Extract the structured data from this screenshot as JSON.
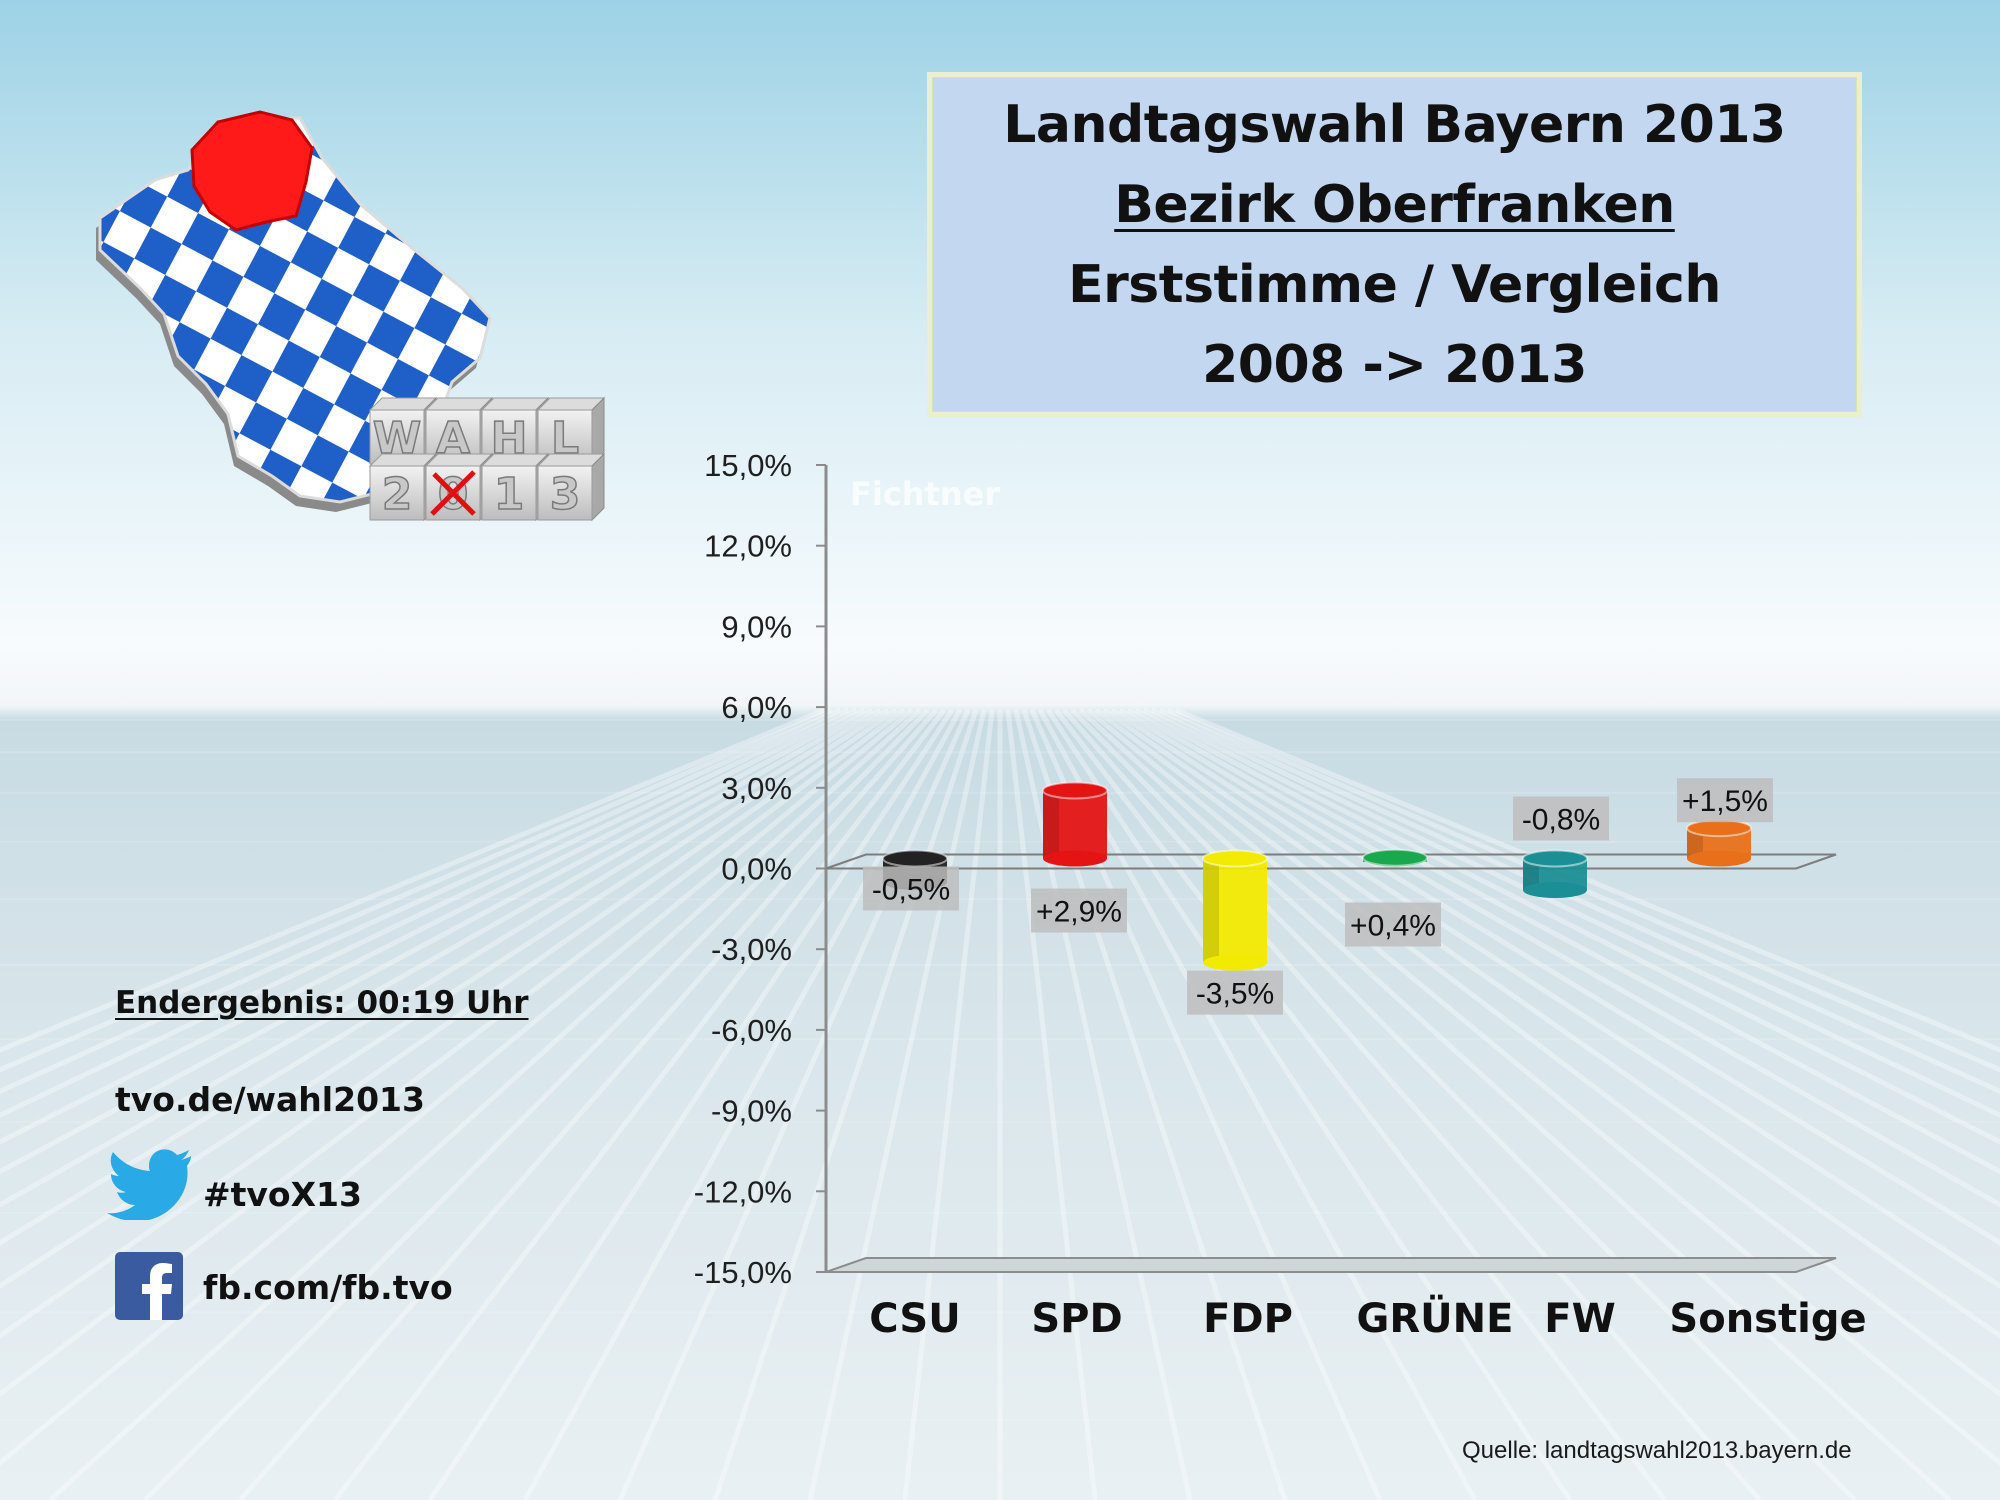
{
  "title_lines": [
    "Landtagswahl Bayern 2013",
    "Bezirk Oberfranken",
    "Erststimme / Vergleich",
    "2008 -> 2013"
  ],
  "logo": {
    "cube_letters": [
      "W",
      "A",
      "H",
      "L",
      "2",
      "0",
      "1",
      "3"
    ],
    "highlight_color": "#ff1a1a",
    "pattern_color": "#1f5fc8"
  },
  "info": {
    "result": "Endergebnis: 00:19 Uhr",
    "website": "tvo.de/wahl2013",
    "twitter": "#tvoX13",
    "facebook": "fb.com/fb.tvo"
  },
  "source": "Quelle: landtagswahl2013.bayern.de",
  "chart_data": {
    "type": "bar",
    "categories": [
      "CSU",
      "SPD",
      "FDP",
      "GRÜNE",
      "FW",
      "Sonstige"
    ],
    "values": [
      -0.5,
      2.9,
      -3.5,
      0.4,
      -0.8,
      1.5
    ],
    "labels": [
      "-0,5%",
      "+2,9%",
      "-3,5%",
      "+0,4%",
      "-0,8%",
      "+1,5%"
    ],
    "colors": [
      "#222222",
      "#e41414",
      "#f2ea00",
      "#1aa84e",
      "#1b8f95",
      "#e8701a"
    ],
    "ylim": [
      -15,
      15
    ],
    "yticks": [
      15,
      12,
      9,
      6,
      3,
      0,
      -3,
      -6,
      -9,
      -12,
      -15
    ],
    "ytick_labels": [
      "15,0%",
      "12,0%",
      "9,0%",
      "6,0%",
      "3,0%",
      "0,0%",
      "-3,0%",
      "-6,0%",
      "-9,0%",
      "-12,0%",
      "-15,0%"
    ],
    "watermark": "Fichtner",
    "grid": false,
    "legend": "none"
  }
}
